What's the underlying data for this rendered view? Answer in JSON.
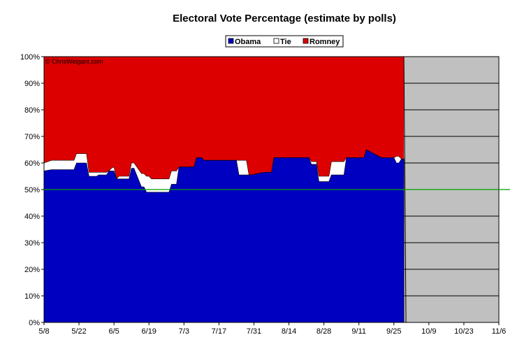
{
  "chart_data": {
    "type": "area",
    "title": "Electoral Vote Percentage (estimate by polls)",
    "watermark": "© ChrisWeigant.com",
    "legend": [
      "Obama",
      "Tie",
      "Romney"
    ],
    "legend_placement": "top-center",
    "colors": {
      "obama": "#0000c0",
      "tie": "#ffffff",
      "romney": "#dd0000",
      "future": "#c0c0c0",
      "threshold": "#00a000"
    },
    "x_tick_labels": [
      "5/8",
      "5/22",
      "6/5",
      "6/19",
      "7/3",
      "7/17",
      "7/31",
      "8/14",
      "8/28",
      "9/11",
      "9/25",
      "10/9",
      "10/23",
      "11/6"
    ],
    "y_tick_labels": [
      "0%",
      "10%",
      "20%",
      "30%",
      "40%",
      "50%",
      "60%",
      "70%",
      "80%",
      "90%",
      "100%"
    ],
    "ylim": [
      0,
      100
    ],
    "threshold": 50,
    "x_days": [
      0,
      3,
      4,
      12,
      13,
      17,
      18,
      21,
      22,
      25,
      26,
      27,
      28,
      29,
      30,
      31,
      33,
      34,
      35,
      36,
      39,
      40,
      41,
      42,
      43,
      50,
      51,
      53,
      54,
      60,
      61,
      63,
      64,
      75,
      76,
      77,
      78,
      81,
      82,
      83,
      88,
      89,
      90,
      91,
      92,
      95,
      96,
      105,
      106,
      107,
      109,
      110,
      113,
      114,
      115,
      120,
      121,
      125,
      126,
      128,
      129,
      135,
      136,
      137,
      140,
      141,
      142,
      143,
      144
    ],
    "obama": [
      57,
      57.5,
      57.5,
      57.5,
      60,
      60,
      55,
      55,
      55.5,
      55.5,
      57,
      57,
      57,
      54,
      54,
      54,
      54,
      54,
      58,
      58,
      51,
      51,
      49,
      49,
      49,
      49,
      52,
      52,
      58.5,
      58.5,
      62,
      62,
      61,
      61,
      61,
      61,
      55.5,
      55.5,
      55.5,
      55.5,
      56.5,
      56.5,
      56.5,
      56.5,
      62,
      62,
      62,
      62,
      62,
      59.5,
      59.5,
      53,
      53,
      53,
      55.5,
      55.5,
      62,
      62,
      62,
      62,
      65,
      62,
      62,
      62,
      62,
      60,
      60,
      61.5,
      61.5
    ],
    "tie": [
      3,
      3.5,
      3.5,
      3.5,
      3.5,
      3.5,
      1.5,
      1.5,
      1,
      1,
      0,
      1,
      1.5,
      0,
      1,
      1,
      1,
      1,
      2,
      2,
      5,
      5,
      6,
      6,
      5,
      5,
      5,
      5,
      0,
      0,
      0,
      0,
      0,
      0,
      0,
      0,
      5.5,
      5.5,
      0,
      0,
      0,
      0,
      0,
      0,
      0,
      0,
      0,
      0,
      0,
      1,
      1,
      2,
      2,
      2,
      5,
      5,
      0,
      0,
      0,
      0,
      0,
      0,
      0,
      0,
      0,
      2.5,
      2.5,
      0,
      0
    ],
    "x_last_poll_day": 144,
    "x_end_day": 182
  }
}
